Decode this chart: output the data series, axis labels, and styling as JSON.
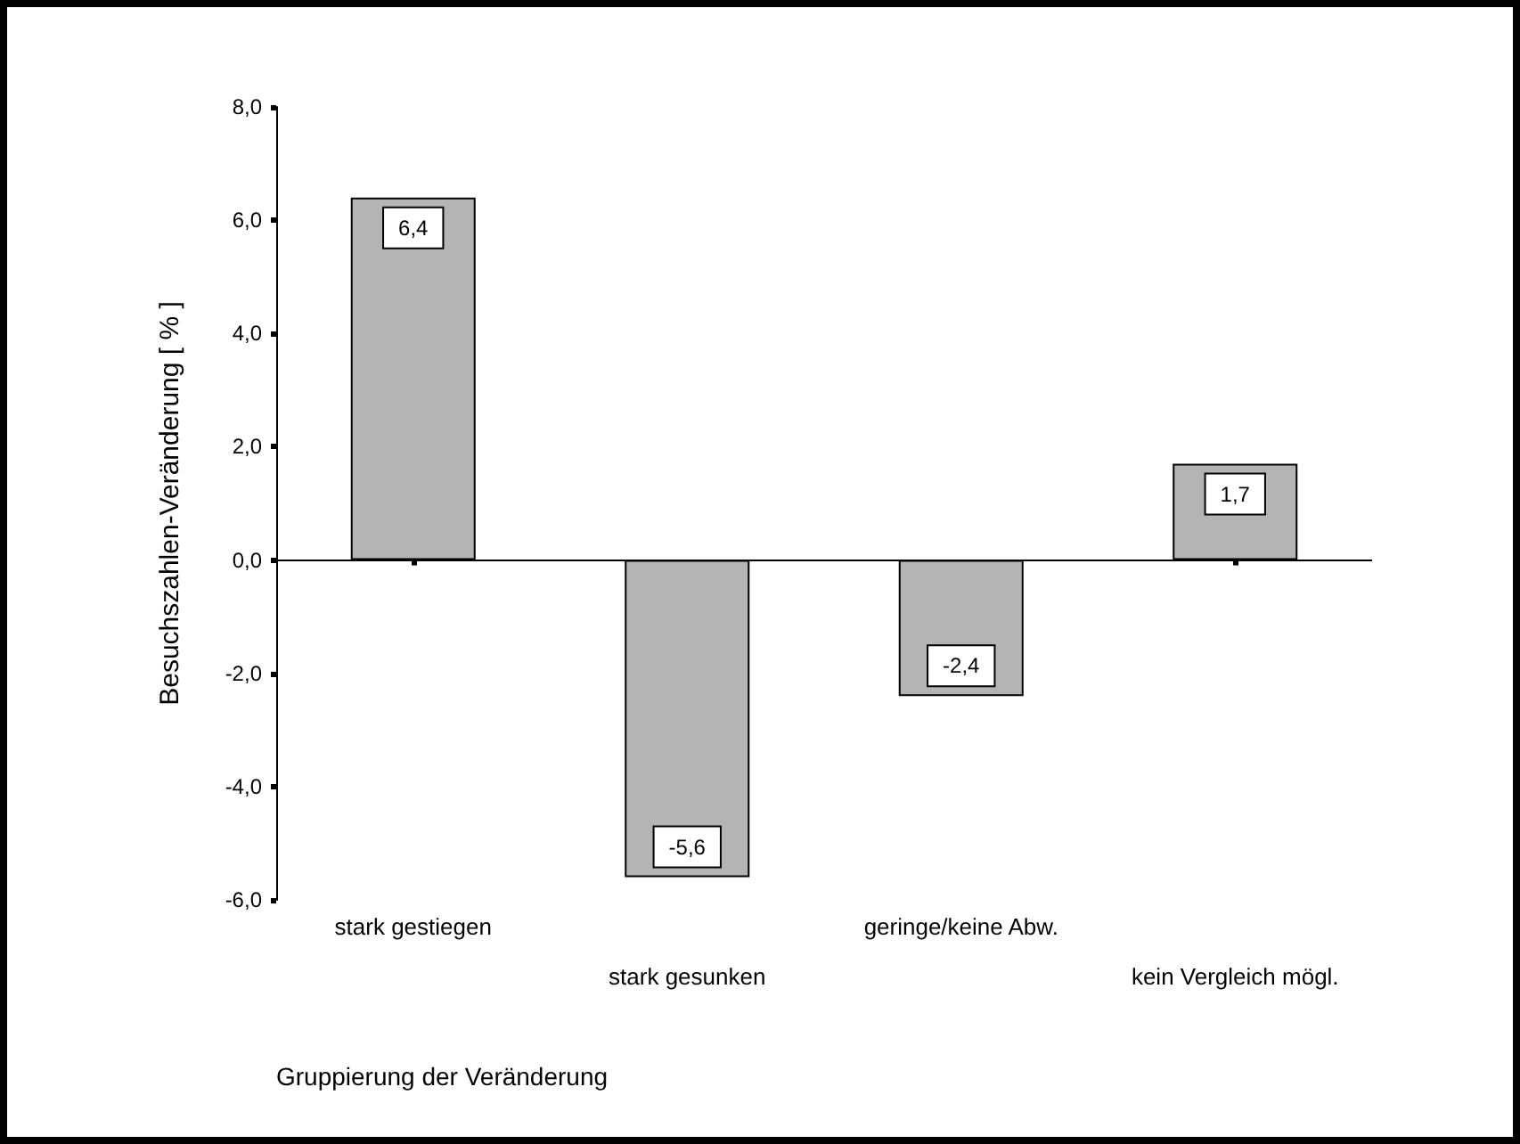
{
  "chart_data": {
    "type": "bar",
    "xlabel": "Gruppierung der Veränderung",
    "ylabel": "Besuchszahlen-Veränderung [ % ]",
    "categories": [
      "stark gestiegen",
      "stark gesunken",
      "geringe/keine Abw.",
      "kein Vergleich mögl."
    ],
    "values": [
      6.4,
      -5.6,
      -2.4,
      1.7
    ],
    "value_labels": [
      "6,4",
      "-5,6",
      "-2,4",
      "1,7"
    ],
    "color": "#b4b4b4",
    "ylim": [
      -6,
      8
    ],
    "yticks": [
      {
        "value": -6,
        "label": "-6,0"
      },
      {
        "value": -4,
        "label": "-4,0"
      },
      {
        "value": -2,
        "label": "-2,0"
      },
      {
        "value": 0,
        "label": "0,0"
      },
      {
        "value": 2,
        "label": "2,0"
      },
      {
        "value": 4,
        "label": "4,0"
      },
      {
        "value": 6,
        "label": "6,0"
      },
      {
        "value": 8,
        "label": "8,0"
      }
    ],
    "ref_lines": [
      {
        "axis": "y",
        "value": 0,
        "color": "#000000"
      }
    ]
  }
}
